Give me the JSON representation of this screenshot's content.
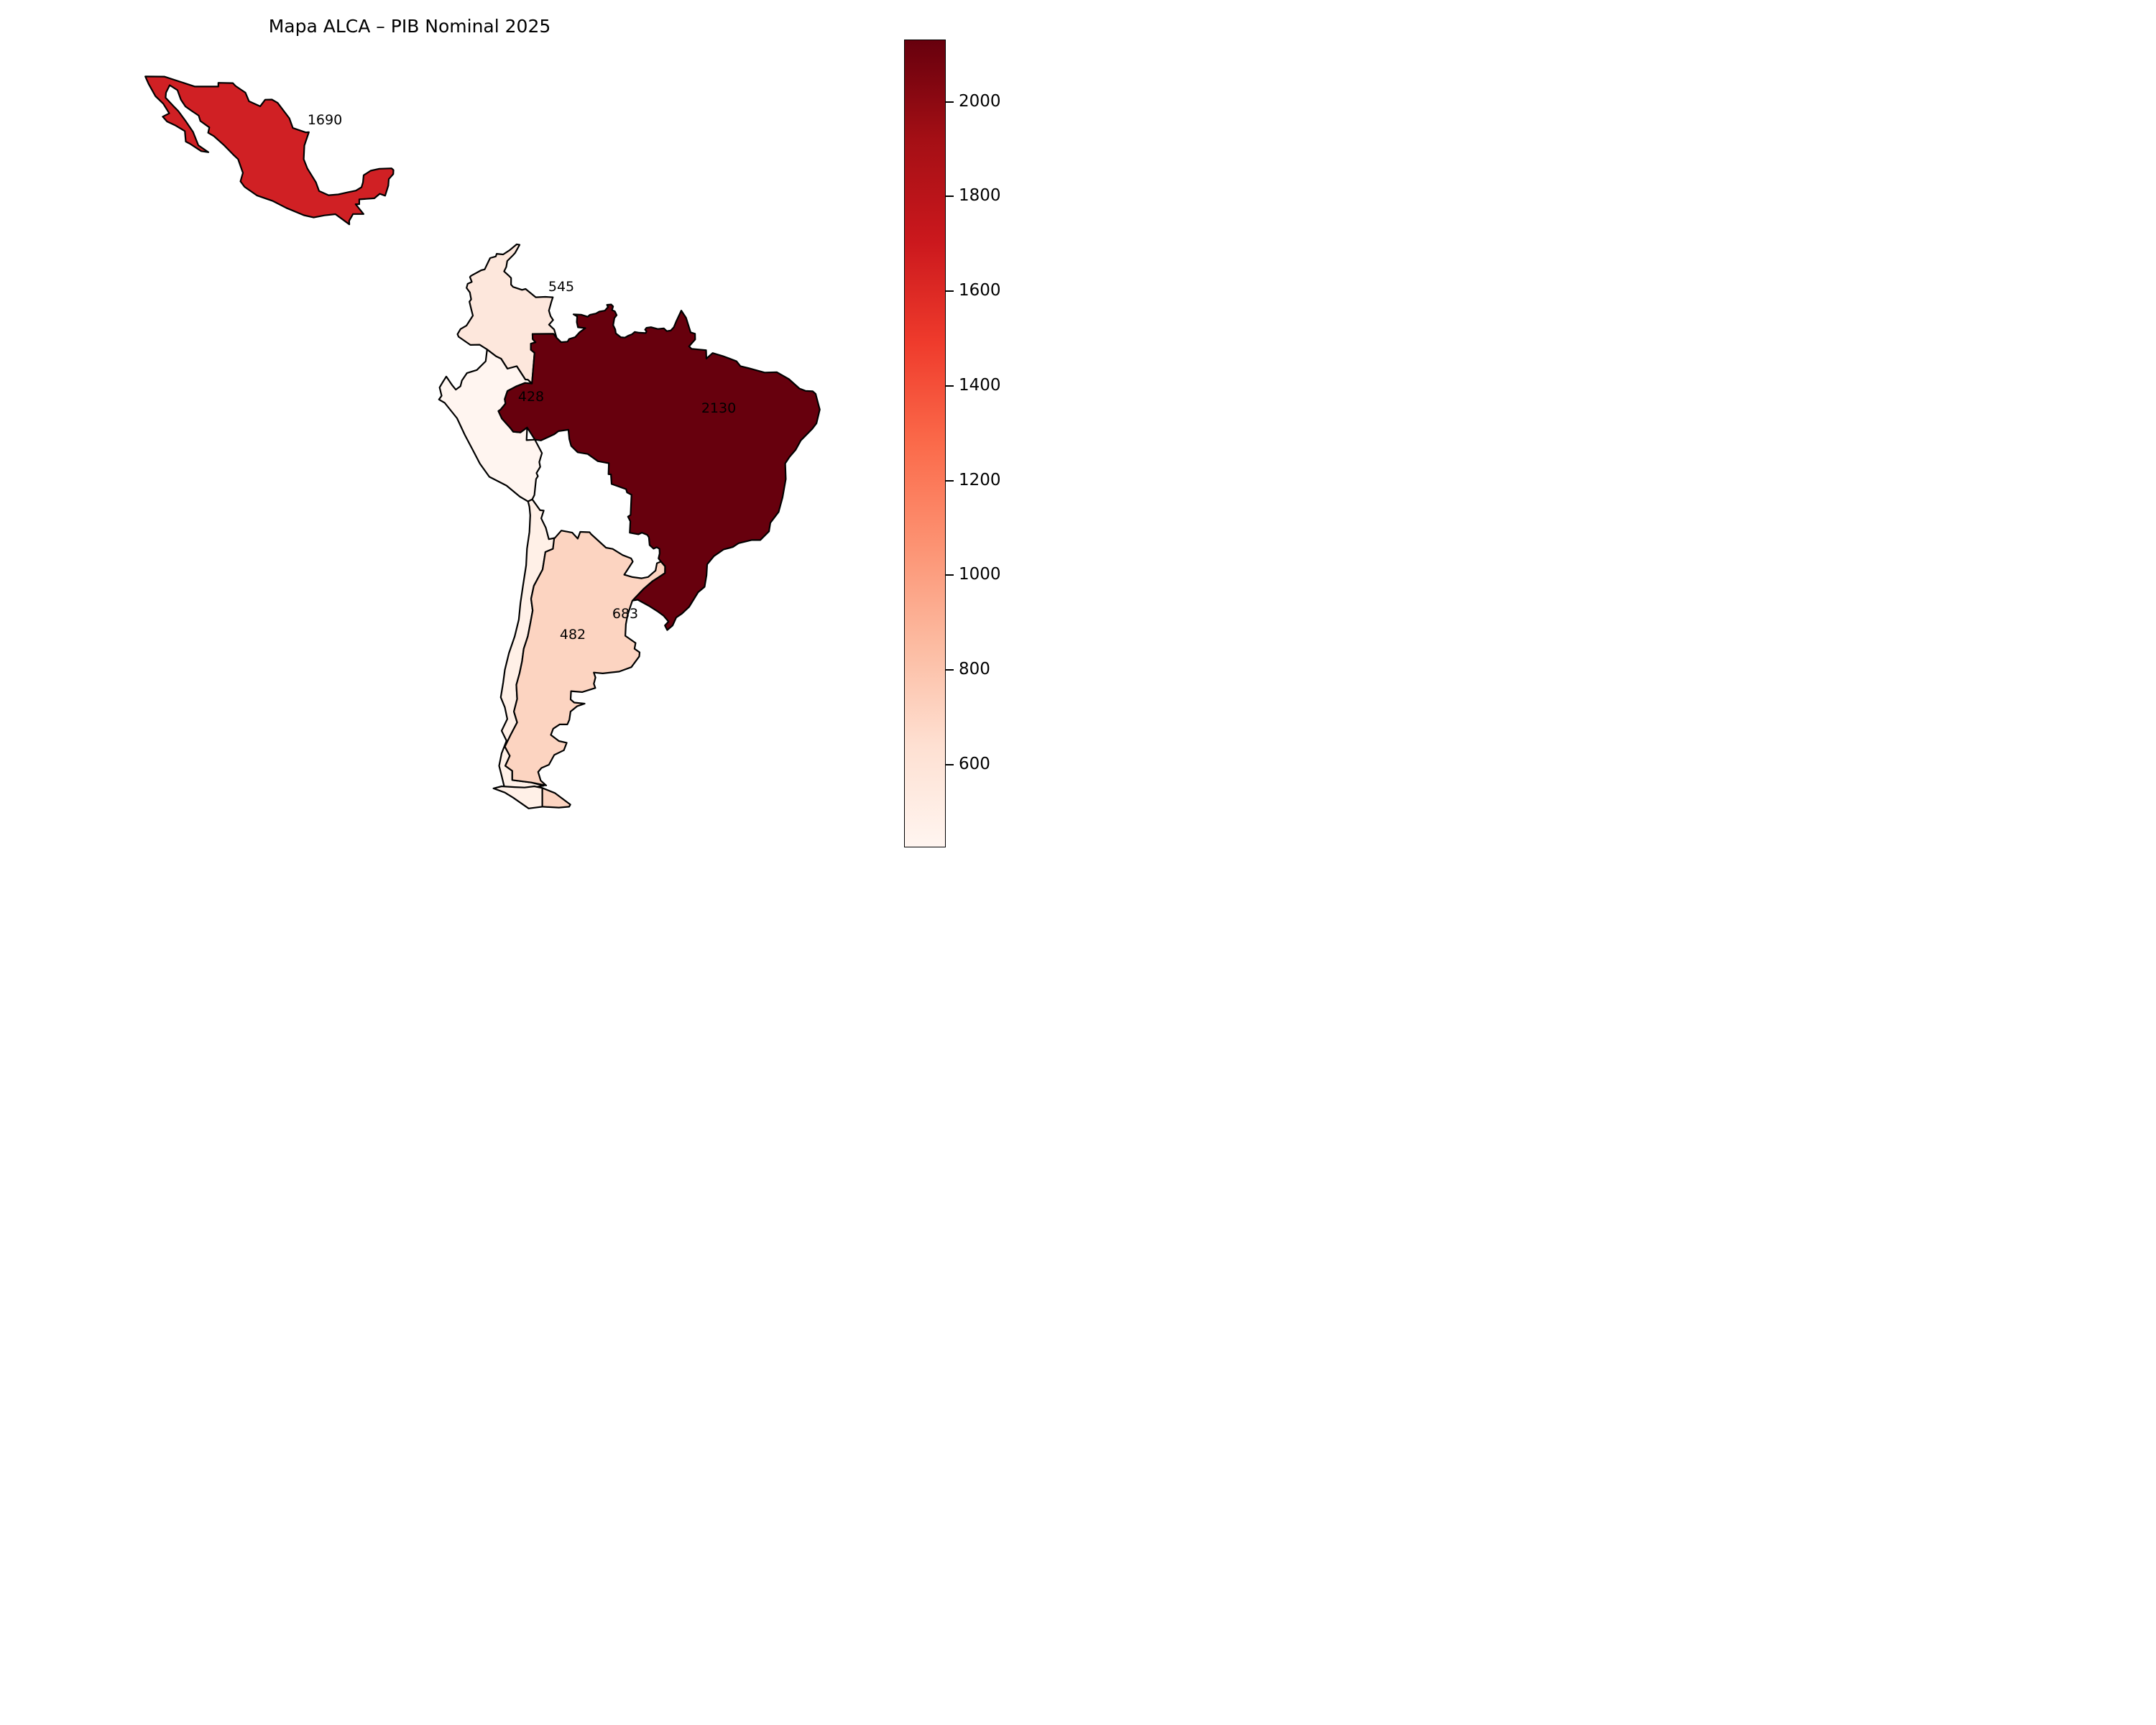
{
  "title": "Mapa ALCA – PIB Nominal 2025",
  "chart_data": {
    "type": "choropleth_map",
    "title": "Mapa ALCA – PIB Nominal 2025",
    "metric": "PIB Nominal 2025",
    "colormap": "Reds",
    "vmin": 428,
    "vmax": 2130,
    "legend_position": "right vertical colorbar",
    "countries": [
      {
        "name": "Mexico",
        "value": 1690,
        "label": "1690",
        "color": "#d02024"
      },
      {
        "name": "Colombia",
        "value": 545,
        "label": "545",
        "color": "#fde7dc"
      },
      {
        "name": "Peru",
        "value": 428,
        "label": "428",
        "color": "#fff5f0"
      },
      {
        "name": "Brazil",
        "value": 2130,
        "label": "2130",
        "color": "#67000d"
      },
      {
        "name": "Chile",
        "value": 482,
        "label": "482",
        "color": "#fff0e7"
      },
      {
        "name": "Argentina",
        "value": 683,
        "label": "683",
        "color": "#fcd4c1"
      }
    ],
    "colorbar": {
      "ticks": [
        600,
        800,
        1000,
        1200,
        1400,
        1600,
        1800,
        2000
      ],
      "gradient_stops": [
        "#fff5f0",
        "#fee0d2",
        "#fcbba1",
        "#fc9272",
        "#fb6a4a",
        "#ef3b2c",
        "#cb181d",
        "#a50f15",
        "#67000d"
      ]
    }
  }
}
